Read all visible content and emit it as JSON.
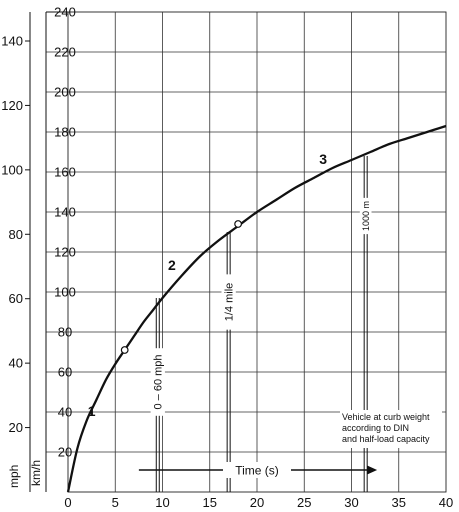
{
  "chart_data": {
    "type": "line",
    "title": "",
    "xlabel": "Time (s)",
    "ylabel": "km/h",
    "ylabel_secondary": "mph",
    "xlim": [
      0,
      40
    ],
    "ylim": [
      0,
      240
    ],
    "y2lim": [
      0,
      149
    ],
    "grid": true,
    "x_ticks": [
      "0",
      "5",
      "10",
      "15",
      "20",
      "25",
      "30",
      "35",
      "40"
    ],
    "x_tick_values": [
      0,
      5,
      10,
      15,
      20,
      25,
      30,
      35,
      40
    ],
    "y_ticks": [
      "20",
      "40",
      "60",
      "80",
      "100",
      "120",
      "140",
      "160",
      "180",
      "200",
      "220",
      "240"
    ],
    "y_tick_values": [
      20,
      40,
      60,
      80,
      100,
      120,
      140,
      160,
      180,
      200,
      220,
      240
    ],
    "y2_ticks": [
      "20",
      "40",
      "60",
      "80",
      "100",
      "120",
      "140"
    ],
    "y2_tick_values": [
      20,
      40,
      60,
      80,
      100,
      120,
      140
    ],
    "series": [
      {
        "x": [
          0,
          1,
          2,
          3,
          4,
          5,
          6,
          7,
          8,
          9,
          10,
          12,
          14,
          16,
          18,
          20,
          22,
          24,
          26,
          28,
          30,
          32,
          34,
          36,
          38,
          40
        ],
        "values": [
          0,
          22,
          36,
          46,
          56,
          64,
          71,
          78,
          85,
          91,
          97,
          108,
          118,
          126,
          133,
          140,
          146,
          152,
          157,
          162,
          166,
          170,
          174,
          177,
          180,
          183
        ]
      }
    ],
    "markers": [
      {
        "x": 6,
        "y": 71
      },
      {
        "x": 18,
        "y": 134
      }
    ],
    "segment_labels": [
      {
        "text": "1",
        "x": 2.5,
        "y": 38
      },
      {
        "text": "2",
        "x": 11,
        "y": 111
      },
      {
        "text": "3",
        "x": 27,
        "y": 164
      }
    ],
    "annotations": [
      {
        "text": "0 – 60 mph",
        "x": 9.5,
        "y_top": 97
      },
      {
        "text": "1/4 mile",
        "x": 17,
        "y_top": 130
      },
      {
        "text": "1000 m",
        "x": 31.5,
        "y_top": 168
      }
    ],
    "note": [
      "Vehicle at curb weight",
      "according to DIN",
      "and half-load capacity"
    ]
  }
}
